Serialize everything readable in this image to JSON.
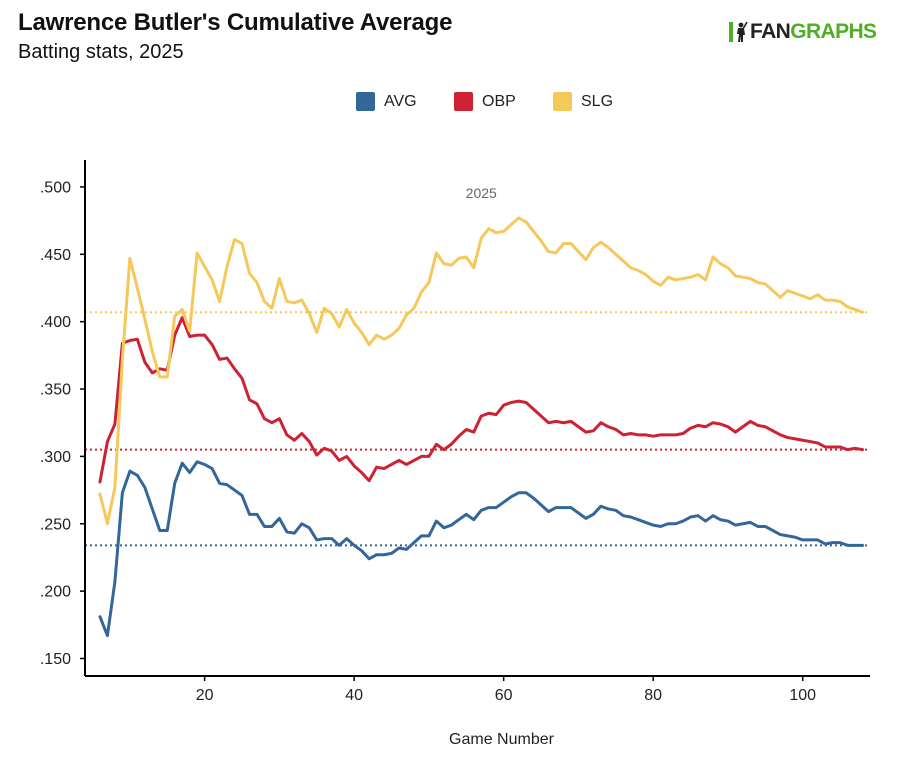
{
  "header": {
    "title": "Lawrence Butler's Cumulative Average",
    "subtitle": "Batting stats, 2025"
  },
  "logo": {
    "text_a": "FAN",
    "text_b": "GRAPHS"
  },
  "colors": {
    "AVG": "#336699",
    "OBP": "#cc2233",
    "SLG": "#f5c85a",
    "axis": "#000000"
  },
  "chart_data": {
    "type": "line",
    "title": "Lawrence Butler's Cumulative Average",
    "subtitle": "Batting stats, 2025",
    "xlabel": "Game Number",
    "ylabel": "",
    "annotation": "2025",
    "xlim": [
      4,
      109
    ],
    "ylim": [
      0.137,
      0.52
    ],
    "x_ticks": [
      20,
      40,
      60,
      80,
      100
    ],
    "x_tick_labels": [
      "20",
      "40",
      "60",
      "80",
      "100"
    ],
    "y_ticks": [
      0.15,
      0.2,
      0.25,
      0.3,
      0.35,
      0.4,
      0.45,
      0.5
    ],
    "y_tick_labels": [
      ".150",
      ".200",
      ".250",
      ".300",
      ".350",
      ".400",
      ".450",
      ".500"
    ],
    "grid": false,
    "legend_position": "top-center",
    "series": [
      {
        "name": "AVG",
        "season_average": 0.234,
        "points": [
          [
            6,
            0.181
          ],
          [
            7,
            0.167
          ],
          [
            8,
            0.207
          ],
          [
            9,
            0.273
          ],
          [
            10,
            0.289
          ],
          [
            11,
            0.286
          ],
          [
            12,
            0.277
          ],
          [
            13,
            0.261
          ],
          [
            14,
            0.245
          ],
          [
            15,
            0.245
          ],
          [
            16,
            0.28
          ],
          [
            17,
            0.295
          ],
          [
            18,
            0.288
          ],
          [
            19,
            0.296
          ],
          [
            20,
            0.294
          ],
          [
            21,
            0.291
          ],
          [
            22,
            0.28
          ],
          [
            23,
            0.279
          ],
          [
            24,
            0.275
          ],
          [
            25,
            0.271
          ],
          [
            26,
            0.257
          ],
          [
            27,
            0.257
          ],
          [
            28,
            0.248
          ],
          [
            29,
            0.248
          ],
          [
            30,
            0.254
          ],
          [
            31,
            0.244
          ],
          [
            32,
            0.243
          ],
          [
            33,
            0.25
          ],
          [
            34,
            0.247
          ],
          [
            35,
            0.238
          ],
          [
            36,
            0.239
          ],
          [
            37,
            0.239
          ],
          [
            38,
            0.234
          ],
          [
            39,
            0.239
          ],
          [
            40,
            0.234
          ],
          [
            41,
            0.23
          ],
          [
            42,
            0.224
          ],
          [
            43,
            0.227
          ],
          [
            44,
            0.227
          ],
          [
            45,
            0.228
          ],
          [
            46,
            0.232
          ],
          [
            47,
            0.231
          ],
          [
            48,
            0.236
          ],
          [
            49,
            0.241
          ],
          [
            50,
            0.241
          ],
          [
            51,
            0.252
          ],
          [
            52,
            0.247
          ],
          [
            53,
            0.249
          ],
          [
            54,
            0.253
          ],
          [
            55,
            0.257
          ],
          [
            56,
            0.253
          ],
          [
            57,
            0.26
          ],
          [
            58,
            0.262
          ],
          [
            59,
            0.262
          ],
          [
            60,
            0.266
          ],
          [
            61,
            0.27
          ],
          [
            62,
            0.273
          ],
          [
            63,
            0.273
          ],
          [
            64,
            0.269
          ],
          [
            65,
            0.264
          ],
          [
            66,
            0.259
          ],
          [
            67,
            0.262
          ],
          [
            68,
            0.262
          ],
          [
            69,
            0.262
          ],
          [
            70,
            0.258
          ],
          [
            71,
            0.254
          ],
          [
            72,
            0.257
          ],
          [
            73,
            0.263
          ],
          [
            74,
            0.261
          ],
          [
            75,
            0.26
          ],
          [
            76,
            0.256
          ],
          [
            77,
            0.255
          ],
          [
            78,
            0.253
          ],
          [
            79,
            0.251
          ],
          [
            80,
            0.249
          ],
          [
            81,
            0.248
          ],
          [
            82,
            0.25
          ],
          [
            83,
            0.25
          ],
          [
            84,
            0.252
          ],
          [
            85,
            0.255
          ],
          [
            86,
            0.256
          ],
          [
            87,
            0.252
          ],
          [
            88,
            0.256
          ],
          [
            89,
            0.253
          ],
          [
            90,
            0.252
          ],
          [
            91,
            0.249
          ],
          [
            92,
            0.25
          ],
          [
            93,
            0.251
          ],
          [
            94,
            0.248
          ],
          [
            95,
            0.248
          ],
          [
            96,
            0.245
          ],
          [
            97,
            0.242
          ],
          [
            98,
            0.241
          ],
          [
            99,
            0.24
          ],
          [
            100,
            0.238
          ],
          [
            101,
            0.238
          ],
          [
            102,
            0.238
          ],
          [
            103,
            0.235
          ],
          [
            104,
            0.236
          ],
          [
            105,
            0.236
          ],
          [
            106,
            0.234
          ],
          [
            107,
            0.234
          ],
          [
            108,
            0.234
          ]
        ]
      },
      {
        "name": "OBP",
        "season_average": 0.305,
        "points": [
          [
            6,
            0.281
          ],
          [
            7,
            0.311
          ],
          [
            8,
            0.324
          ],
          [
            9,
            0.384
          ],
          [
            10,
            0.386
          ],
          [
            11,
            0.387
          ],
          [
            12,
            0.37
          ],
          [
            13,
            0.362
          ],
          [
            14,
            0.365
          ],
          [
            15,
            0.364
          ],
          [
            16,
            0.39
          ],
          [
            17,
            0.403
          ],
          [
            18,
            0.389
          ],
          [
            19,
            0.39
          ],
          [
            20,
            0.39
          ],
          [
            21,
            0.383
          ],
          [
            22,
            0.372
          ],
          [
            23,
            0.373
          ],
          [
            24,
            0.365
          ],
          [
            25,
            0.358
          ],
          [
            26,
            0.342
          ],
          [
            27,
            0.339
          ],
          [
            28,
            0.328
          ],
          [
            29,
            0.325
          ],
          [
            30,
            0.328
          ],
          [
            31,
            0.316
          ],
          [
            32,
            0.312
          ],
          [
            33,
            0.317
          ],
          [
            34,
            0.311
          ],
          [
            35,
            0.301
          ],
          [
            36,
            0.306
          ],
          [
            37,
            0.304
          ],
          [
            38,
            0.297
          ],
          [
            39,
            0.3
          ],
          [
            40,
            0.293
          ],
          [
            41,
            0.288
          ],
          [
            42,
            0.282
          ],
          [
            43,
            0.292
          ],
          [
            44,
            0.291
          ],
          [
            45,
            0.294
          ],
          [
            46,
            0.297
          ],
          [
            47,
            0.294
          ],
          [
            48,
            0.297
          ],
          [
            49,
            0.3
          ],
          [
            50,
            0.3
          ],
          [
            51,
            0.309
          ],
          [
            52,
            0.305
          ],
          [
            53,
            0.309
          ],
          [
            54,
            0.315
          ],
          [
            55,
            0.32
          ],
          [
            56,
            0.318
          ],
          [
            57,
            0.33
          ],
          [
            58,
            0.332
          ],
          [
            59,
            0.331
          ],
          [
            60,
            0.338
          ],
          [
            61,
            0.34
          ],
          [
            62,
            0.341
          ],
          [
            63,
            0.34
          ],
          [
            64,
            0.335
          ],
          [
            65,
            0.33
          ],
          [
            66,
            0.325
          ],
          [
            67,
            0.326
          ],
          [
            68,
            0.325
          ],
          [
            69,
            0.326
          ],
          [
            70,
            0.322
          ],
          [
            71,
            0.318
          ],
          [
            72,
            0.319
          ],
          [
            73,
            0.325
          ],
          [
            74,
            0.322
          ],
          [
            75,
            0.32
          ],
          [
            76,
            0.316
          ],
          [
            77,
            0.317
          ],
          [
            78,
            0.316
          ],
          [
            79,
            0.316
          ],
          [
            80,
            0.315
          ],
          [
            81,
            0.316
          ],
          [
            82,
            0.316
          ],
          [
            83,
            0.316
          ],
          [
            84,
            0.317
          ],
          [
            85,
            0.321
          ],
          [
            86,
            0.323
          ],
          [
            87,
            0.322
          ],
          [
            88,
            0.325
          ],
          [
            89,
            0.324
          ],
          [
            90,
            0.322
          ],
          [
            91,
            0.318
          ],
          [
            92,
            0.322
          ],
          [
            93,
            0.326
          ],
          [
            94,
            0.323
          ],
          [
            95,
            0.322
          ],
          [
            96,
            0.319
          ],
          [
            97,
            0.316
          ],
          [
            98,
            0.314
          ],
          [
            99,
            0.313
          ],
          [
            100,
            0.312
          ],
          [
            101,
            0.311
          ],
          [
            102,
            0.31
          ],
          [
            103,
            0.307
          ],
          [
            104,
            0.307
          ],
          [
            105,
            0.307
          ],
          [
            106,
            0.305
          ],
          [
            107,
            0.306
          ],
          [
            108,
            0.305
          ]
        ]
      },
      {
        "name": "SLG",
        "season_average": 0.407,
        "points": [
          [
            6,
            0.272
          ],
          [
            7,
            0.25
          ],
          [
            8,
            0.277
          ],
          [
            9,
            0.372
          ],
          [
            10,
            0.447
          ],
          [
            11,
            0.425
          ],
          [
            12,
            0.402
          ],
          [
            13,
            0.378
          ],
          [
            14,
            0.359
          ],
          [
            15,
            0.359
          ],
          [
            16,
            0.404
          ],
          [
            17,
            0.409
          ],
          [
            18,
            0.393
          ],
          [
            19,
            0.451
          ],
          [
            20,
            0.441
          ],
          [
            21,
            0.431
          ],
          [
            22,
            0.415
          ],
          [
            23,
            0.441
          ],
          [
            24,
            0.461
          ],
          [
            25,
            0.458
          ],
          [
            26,
            0.436
          ],
          [
            27,
            0.429
          ],
          [
            28,
            0.415
          ],
          [
            29,
            0.41
          ],
          [
            30,
            0.432
          ],
          [
            31,
            0.415
          ],
          [
            32,
            0.414
          ],
          [
            33,
            0.416
          ],
          [
            34,
            0.406
          ],
          [
            35,
            0.392
          ],
          [
            36,
            0.41
          ],
          [
            37,
            0.406
          ],
          [
            38,
            0.396
          ],
          [
            39,
            0.409
          ],
          [
            40,
            0.399
          ],
          [
            41,
            0.392
          ],
          [
            42,
            0.383
          ],
          [
            43,
            0.39
          ],
          [
            44,
            0.387
          ],
          [
            45,
            0.39
          ],
          [
            46,
            0.395
          ],
          [
            47,
            0.405
          ],
          [
            48,
            0.41
          ],
          [
            49,
            0.422
          ],
          [
            50,
            0.429
          ],
          [
            51,
            0.451
          ],
          [
            52,
            0.443
          ],
          [
            53,
            0.442
          ],
          [
            54,
            0.447
          ],
          [
            55,
            0.448
          ],
          [
            56,
            0.44
          ],
          [
            57,
            0.462
          ],
          [
            58,
            0.469
          ],
          [
            59,
            0.466
          ],
          [
            60,
            0.467
          ],
          [
            61,
            0.472
          ],
          [
            62,
            0.477
          ],
          [
            63,
            0.474
          ],
          [
            64,
            0.467
          ],
          [
            65,
            0.46
          ],
          [
            66,
            0.452
          ],
          [
            67,
            0.451
          ],
          [
            68,
            0.458
          ],
          [
            69,
            0.458
          ],
          [
            70,
            0.452
          ],
          [
            71,
            0.446
          ],
          [
            72,
            0.455
          ],
          [
            73,
            0.459
          ],
          [
            74,
            0.455
          ],
          [
            75,
            0.45
          ],
          [
            76,
            0.445
          ],
          [
            77,
            0.44
          ],
          [
            78,
            0.438
          ],
          [
            79,
            0.435
          ],
          [
            80,
            0.43
          ],
          [
            81,
            0.427
          ],
          [
            82,
            0.433
          ],
          [
            83,
            0.431
          ],
          [
            84,
            0.432
          ],
          [
            85,
            0.433
          ],
          [
            86,
            0.435
          ],
          [
            87,
            0.431
          ],
          [
            88,
            0.448
          ],
          [
            89,
            0.443
          ],
          [
            90,
            0.44
          ],
          [
            91,
            0.434
          ],
          [
            92,
            0.433
          ],
          [
            93,
            0.432
          ],
          [
            94,
            0.429
          ],
          [
            95,
            0.428
          ],
          [
            96,
            0.423
          ],
          [
            97,
            0.418
          ],
          [
            98,
            0.423
          ],
          [
            99,
            0.421
          ],
          [
            100,
            0.419
          ],
          [
            101,
            0.417
          ],
          [
            102,
            0.42
          ],
          [
            103,
            0.416
          ],
          [
            104,
            0.416
          ],
          [
            105,
            0.415
          ],
          [
            106,
            0.411
          ],
          [
            107,
            0.409
          ],
          [
            108,
            0.407
          ]
        ]
      }
    ]
  }
}
